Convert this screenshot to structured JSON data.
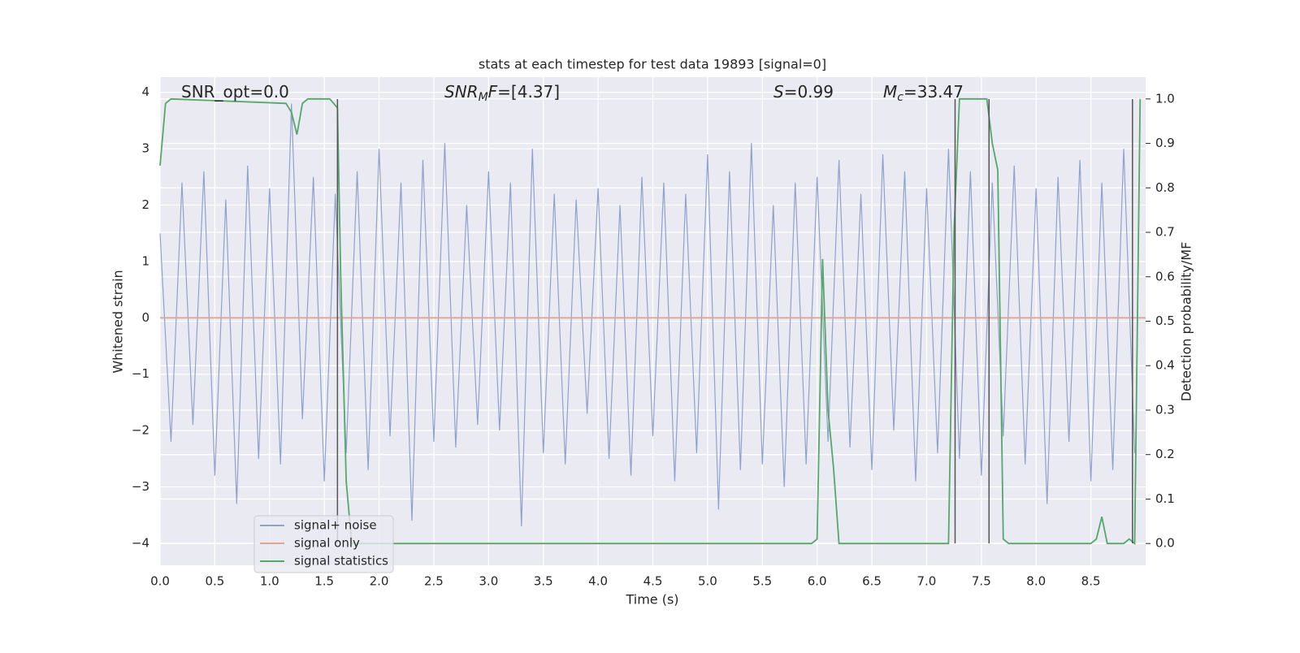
{
  "chart_data": {
    "type": "line",
    "title": "stats at each timestep for test data 19893 [signal=0]",
    "xlabel": "Time (s)",
    "ylabel": "Whitened strain",
    "y2label": "Detection probability/MF",
    "xlim": [
      0,
      9
    ],
    "ylim": [
      -4.39,
      4.27
    ],
    "y2lim": [
      -0.049,
      1.049
    ],
    "xticks": [
      {
        "value": 0,
        "label": "0.0"
      },
      {
        "value": 0.5,
        "label": "0.5"
      },
      {
        "value": 1,
        "label": "1.0"
      },
      {
        "value": 1.5,
        "label": "1.5"
      },
      {
        "value": 2,
        "label": "2.0"
      },
      {
        "value": 2.5,
        "label": "2.5"
      },
      {
        "value": 3,
        "label": "3.0"
      },
      {
        "value": 3.5,
        "label": "3.5"
      },
      {
        "value": 4,
        "label": "4.0"
      },
      {
        "value": 4.5,
        "label": "4.5"
      },
      {
        "value": 5,
        "label": "5.0"
      },
      {
        "value": 5.5,
        "label": "5.5"
      },
      {
        "value": 6,
        "label": "6.0"
      },
      {
        "value": 6.5,
        "label": "6.5"
      },
      {
        "value": 7,
        "label": "7.0"
      },
      {
        "value": 7.5,
        "label": "7.5"
      },
      {
        "value": 8,
        "label": "8.0"
      },
      {
        "value": 8.5,
        "label": "8.5"
      }
    ],
    "yticks": [
      {
        "value": -4,
        "label": "−4"
      },
      {
        "value": -3,
        "label": "−3"
      },
      {
        "value": -2,
        "label": "−2"
      },
      {
        "value": -1,
        "label": "−1"
      },
      0,
      1,
      2,
      3,
      4
    ],
    "y2ticks": [
      {
        "value": 0,
        "label": "0.0"
      },
      {
        "value": 0.1,
        "label": "0.1"
      },
      {
        "value": 0.2,
        "label": "0.2"
      },
      {
        "value": 0.3,
        "label": "0.3"
      },
      {
        "value": 0.4,
        "label": "0.4"
      },
      {
        "value": 0.5,
        "label": "0.5"
      },
      {
        "value": 0.6,
        "label": "0.6"
      },
      {
        "value": 0.7,
        "label": "0.7"
      },
      {
        "value": 0.8,
        "label": "0.8"
      },
      {
        "value": 0.9,
        "label": "0.9"
      },
      {
        "value": 1,
        "label": "1.0"
      }
    ],
    "grid": true,
    "series": [
      {
        "name": "signal+ noise",
        "color": "#8fa2cc",
        "x": [
          0,
          0.1,
          0.2,
          0.3,
          0.4,
          0.5,
          0.6,
          0.7,
          0.8,
          0.9,
          1,
          1.1,
          1.2,
          1.3,
          1.4,
          1.5,
          1.6,
          1.7,
          1.8,
          1.9,
          2,
          2.1,
          2.2,
          2.3,
          2.4,
          2.5,
          2.6,
          2.7,
          2.8,
          2.9,
          3,
          3.1,
          3.2,
          3.3,
          3.4,
          3.5,
          3.6,
          3.7,
          3.8,
          3.9,
          4,
          4.1,
          4.2,
          4.3,
          4.4,
          4.5,
          4.6,
          4.7,
          4.8,
          4.9,
          5,
          5.1,
          5.2,
          5.3,
          5.4,
          5.5,
          5.6,
          5.7,
          5.8,
          5.9,
          6,
          6.1,
          6.2,
          6.3,
          6.4,
          6.5,
          6.6,
          6.7,
          6.8,
          6.9,
          7,
          7.1,
          7.2,
          7.3,
          7.4,
          7.5,
          7.6,
          7.7,
          7.8,
          7.9,
          8,
          8.1,
          8.2,
          8.3,
          8.4,
          8.5,
          8.6,
          8.7,
          8.8,
          8.9
        ],
        "values": [
          1.5,
          -2.2,
          2.4,
          -1.9,
          2.6,
          -2.8,
          2.1,
          -3.3,
          2.7,
          -2.5,
          2.3,
          -2.6,
          3.8,
          -1.8,
          2.5,
          -2.9,
          2.2,
          -2.4,
          2.6,
          -2.7,
          3.0,
          -2.1,
          2.4,
          -3.6,
          2.8,
          -2.2,
          3.1,
          -2.3,
          2.0,
          -1.9,
          2.6,
          -2.0,
          2.4,
          -3.7,
          3.0,
          -2.4,
          2.2,
          -2.6,
          2.1,
          -1.7,
          2.3,
          -2.5,
          2.0,
          -2.8,
          2.5,
          -2.1,
          2.4,
          -2.9,
          2.2,
          -2.4,
          2.9,
          -3.4,
          2.6,
          -2.7,
          3.1,
          -2.6,
          2.0,
          -3.0,
          2.4,
          -2.6,
          2.5,
          -2.2,
          2.8,
          -2.3,
          2.2,
          -2.7,
          2.9,
          -2.0,
          2.6,
          -2.9,
          2.3,
          -2.4,
          3.0,
          -2.5,
          2.6,
          -2.8,
          2.4,
          -2.1,
          2.7,
          -2.6,
          2.3,
          -3.3,
          2.5,
          -2.2,
          2.8,
          -2.9,
          2.4,
          -2.7,
          3.0,
          -2.4
        ]
      },
      {
        "name": "signal only",
        "color": "#e8a48a",
        "x": [
          0,
          9
        ],
        "values": [
          0,
          0
        ]
      },
      {
        "name": "signal statistics",
        "color": "#55a868",
        "axis": "y2",
        "x": [
          0,
          0.05,
          0.1,
          1.15,
          1.2,
          1.25,
          1.3,
          1.35,
          1.55,
          1.62,
          1.65,
          1.7,
          1.75,
          5.95,
          6.0,
          6.05,
          6.1,
          6.15,
          6.2,
          7.2,
          7.25,
          7.3,
          7.55,
          7.6,
          7.65,
          7.7,
          7.75,
          8.5,
          8.55,
          8.6,
          8.65,
          8.75,
          8.8,
          8.85,
          8.9,
          8.95
        ],
        "values": [
          0.85,
          0.99,
          1.0,
          0.99,
          0.97,
          0.92,
          0.99,
          1.0,
          1.0,
          0.98,
          0.6,
          0.14,
          0.0,
          0.0,
          0.01,
          0.64,
          0.3,
          0.17,
          0.0,
          0.0,
          0.7,
          1.0,
          1.0,
          0.9,
          0.84,
          0.01,
          0.0,
          0.0,
          0.01,
          0.06,
          0.0,
          0.0,
          0.0,
          0.01,
          0.0,
          1.0
        ]
      }
    ],
    "vlines": {
      "color": "#555555",
      "x": [
        1.62,
        7.26,
        7.57,
        8.88
      ]
    },
    "annotations": [
      [
        {
          "text": "SNR_opt=0.0"
        }
      ],
      [
        {
          "text": "SNR",
          "italic": true
        },
        {
          "text": "M",
          "italic": true,
          "sub": true
        },
        {
          "text": "F",
          "italic": true
        },
        {
          "text": "=[4.37]"
        }
      ],
      [
        {
          "text": "S",
          "italic": true
        },
        {
          "text": "=0.99"
        }
      ],
      [
        {
          "text": "M",
          "italic": true
        },
        {
          "text": "c",
          "italic": true,
          "sub": true
        },
        {
          "text": "=33.47"
        }
      ]
    ]
  }
}
